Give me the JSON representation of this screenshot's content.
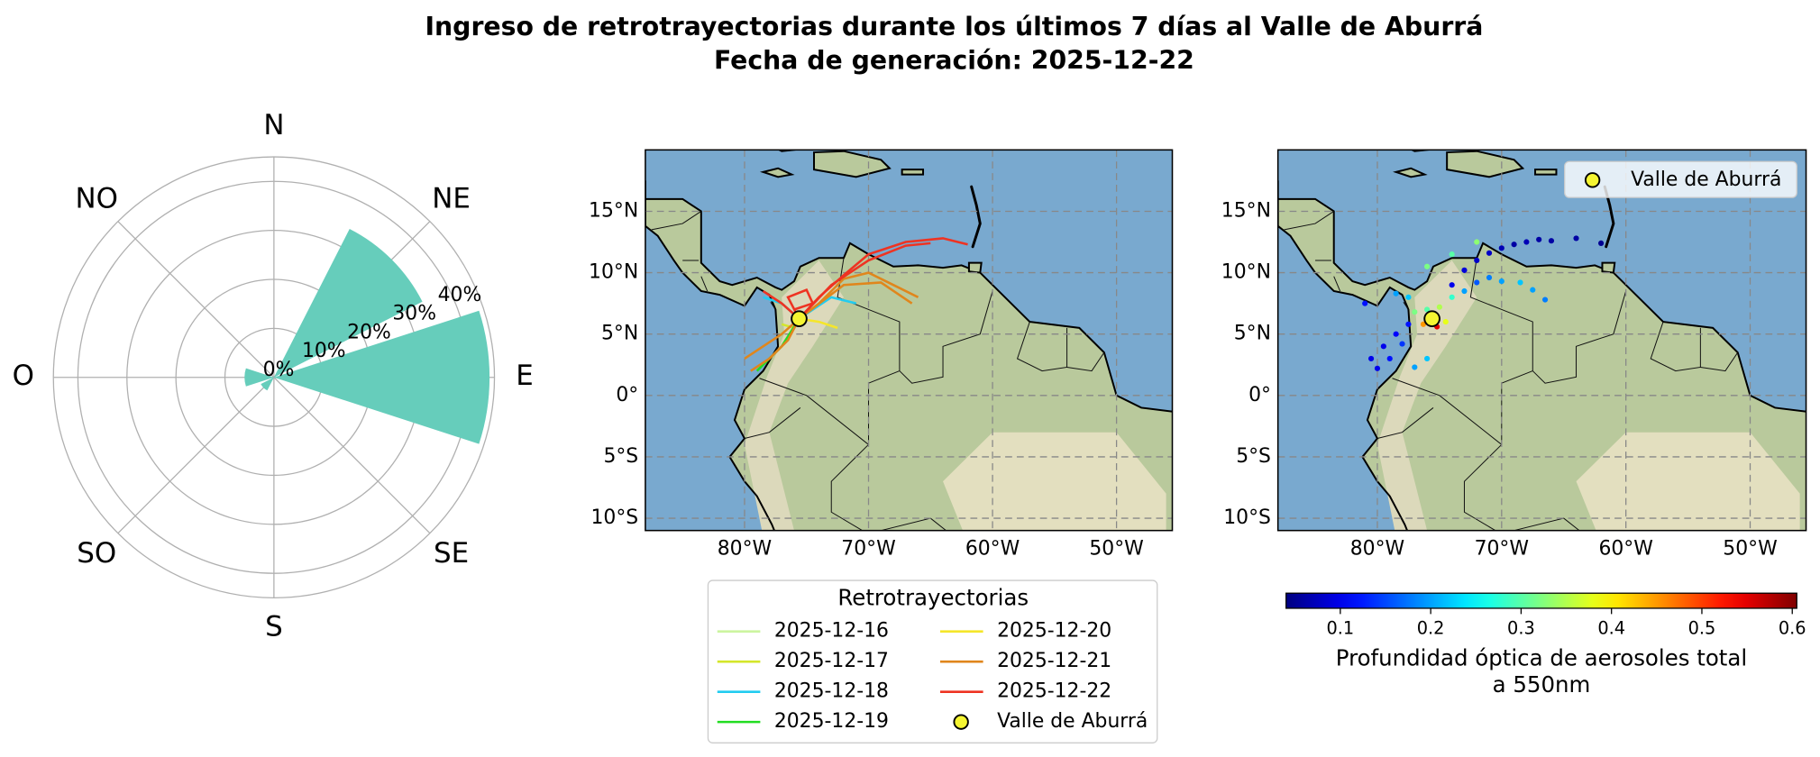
{
  "title": [
    "Ingreso de retrotrayectorias durante los últimos 7 días al Valle de Aburrá",
    "Fecha de generación: 2025-12-22"
  ],
  "chart_data": [
    {
      "type": "polar_bar",
      "categories": [
        "N",
        "NE",
        "E",
        "SE",
        "S",
        "SO",
        "O",
        "NO"
      ],
      "values": [
        0,
        34,
        44,
        0,
        0,
        3,
        6,
        0
      ],
      "color": "#66cdbb",
      "rlim": [
        0,
        45
      ],
      "rticks": [
        {
          "value": 0,
          "label": "0%"
        },
        {
          "value": 10,
          "label": "10%"
        },
        {
          "value": 20,
          "label": "20%"
        },
        {
          "value": 30,
          "label": "30%"
        },
        {
          "value": 40,
          "label": "40%"
        }
      ],
      "grid": true
    },
    {
      "type": "trajectory_map",
      "legend_title": "Retrotrayectorias",
      "xlim": [
        -88,
        -45.5
      ],
      "ylim": [
        -11,
        20
      ],
      "xticks": [
        {
          "value": -80,
          "label": "80°W"
        },
        {
          "value": -70,
          "label": "70°W"
        },
        {
          "value": -60,
          "label": "60°W"
        },
        {
          "value": -50,
          "label": "50°W"
        }
      ],
      "yticks": [
        {
          "value": -10,
          "label": "10°S"
        },
        {
          "value": -5,
          "label": "5°S"
        },
        {
          "value": 0,
          "label": "0°"
        },
        {
          "value": 5,
          "label": "5°N"
        },
        {
          "value": 10,
          "label": "10°N"
        },
        {
          "value": 15,
          "label": "15°N"
        }
      ],
      "grid": true,
      "site": {
        "name": "Valle de Aburrá",
        "lon": -75.6,
        "lat": 6.25,
        "color": "#f5f532"
      },
      "series": [
        {
          "name": "2025-12-16",
          "color": "#ccf5a0",
          "trajectories": [
            {
              "lon": [
                -75.6,
                -74.5
              ],
              "lat": [
                6.25,
                7
              ]
            }
          ]
        },
        {
          "name": "2025-12-17",
          "color": "#d4e62a",
          "trajectories": [
            {
              "lon": [
                -75.6,
                -76,
                -77
              ],
              "lat": [
                6.25,
                5.5,
                5.8
              ]
            }
          ]
        },
        {
          "name": "2025-12-18",
          "color": "#22ccf0",
          "trajectories": [
            {
              "lon": [
                -75.6,
                -77,
                -78.5
              ],
              "lat": [
                6.25,
                7.5,
                8
              ]
            },
            {
              "lon": [
                -75.6,
                -73,
                -71
              ],
              "lat": [
                6.25,
                8,
                7.5
              ]
            }
          ]
        },
        {
          "name": "2025-12-19",
          "color": "#22dd22",
          "trajectories": [
            {
              "lon": [
                -75.6,
                -77,
                -79
              ],
              "lat": [
                6.25,
                4,
                2
              ]
            }
          ]
        },
        {
          "name": "2025-12-20",
          "color": "#f5e62a",
          "trajectories": [
            {
              "lon": [
                -75.6,
                -74,
                -72.5
              ],
              "lat": [
                6.25,
                6,
                5.5
              ]
            }
          ]
        },
        {
          "name": "2025-12-21",
          "color": "#e0861c",
          "trajectories": [
            {
              "lon": [
                -75.6,
                -74,
                -72,
                -70,
                -68,
                -66
              ],
              "lat": [
                6.25,
                7.5,
                9.5,
                10,
                9,
                8
              ]
            },
            {
              "lon": [
                -75.6,
                -77,
                -78.5,
                -80
              ],
              "lat": [
                6.25,
                5,
                4,
                3
              ]
            },
            {
              "lon": [
                -75.6,
                -76.5,
                -78,
                -79.5
              ],
              "lat": [
                6.25,
                4.5,
                3,
                2
              ]
            },
            {
              "lon": [
                -75.6,
                -72,
                -69,
                -66.5
              ],
              "lat": [
                6.25,
                9,
                9.2,
                7.5
              ]
            }
          ]
        },
        {
          "name": "2025-12-22",
          "color": "#ee3322",
          "trajectories": [
            {
              "lon": [
                -75.6,
                -74,
                -72,
                -70,
                -67,
                -64,
                -62
              ],
              "lat": [
                6.25,
                8,
                9.8,
                11.5,
                12.5,
                12.8,
                12.3
              ]
            },
            {
              "lon": [
                -75.6,
                -73,
                -70,
                -67,
                -65
              ],
              "lat": [
                6.25,
                9,
                11,
                12.2,
                12.4
              ]
            },
            {
              "lon": [
                -75.6,
                -77,
                -78.5
              ],
              "lat": [
                6.25,
                7.5,
                8.5
              ]
            },
            {
              "lon": [
                -75.6,
                -76.5,
                -75,
                -74.5,
                -76
              ],
              "lat": [
                6.25,
                8,
                8.6,
                7.5,
                7
              ]
            }
          ]
        }
      ]
    },
    {
      "type": "aod_map",
      "xlim": [
        -88,
        -45.5
      ],
      "ylim": [
        -11,
        20
      ],
      "xticks": [
        {
          "value": -80,
          "label": "80°W"
        },
        {
          "value": -70,
          "label": "70°W"
        },
        {
          "value": -60,
          "label": "60°W"
        },
        {
          "value": -50,
          "label": "50°W"
        }
      ],
      "yticks": [
        {
          "value": -10,
          "label": "10°S"
        },
        {
          "value": -5,
          "label": "5°S"
        },
        {
          "value": 0,
          "label": "0°"
        },
        {
          "value": 5,
          "label": "5°N"
        },
        {
          "value": 10,
          "label": "10°N"
        },
        {
          "value": 15,
          "label": "15°N"
        }
      ],
      "grid": true,
      "colormap": "jet",
      "lon": [
        -66,
        -67,
        -68,
        -69,
        -70,
        -71,
        -72,
        -73,
        -74,
        -64,
        -62,
        -66.5,
        -67.5,
        -68.5,
        -70,
        -71,
        -72,
        -73,
        -80.5,
        -79.5,
        -78.5,
        -77.5,
        -80,
        -79,
        -78,
        -78.5,
        -77.5,
        -81,
        -76,
        -75,
        -74.5,
        -76.3,
        -75.2,
        -74,
        -77,
        -76,
        -77,
        -74,
        -76,
        -72
      ],
      "lat": [
        12.6,
        12.7,
        12.5,
        12.3,
        12,
        11.6,
        11,
        10.2,
        9,
        12.8,
        12.4,
        7.8,
        8.6,
        9.2,
        9.3,
        9.6,
        9.2,
        8.5,
        3,
        4,
        5,
        5.8,
        2.2,
        3,
        4.2,
        8.3,
        8,
        7.5,
        7,
        7.2,
        6,
        5.8,
        5.6,
        8,
        6.8,
        3,
        2.3,
        11.5,
        10.5,
        12.5
      ],
      "values": [
        0.06,
        0.06,
        0.07,
        0.06,
        0.07,
        0.08,
        0.08,
        0.09,
        0.1,
        0.06,
        0.05,
        0.18,
        0.2,
        0.22,
        0.2,
        0.18,
        0.16,
        0.2,
        0.1,
        0.1,
        0.11,
        0.12,
        0.1,
        0.12,
        0.14,
        0.2,
        0.22,
        0.12,
        0.3,
        0.35,
        0.38,
        0.45,
        0.55,
        0.28,
        0.32,
        0.22,
        0.2,
        0.3,
        0.32,
        0.33
      ],
      "clim": [
        0.04,
        0.605
      ],
      "cticks": [
        0.1,
        0.2,
        0.3,
        0.4,
        0.5,
        0.6
      ],
      "colorbar_label": [
        "Profundidad óptica de aerosoles total",
        "a 550nm"
      ]
    }
  ]
}
